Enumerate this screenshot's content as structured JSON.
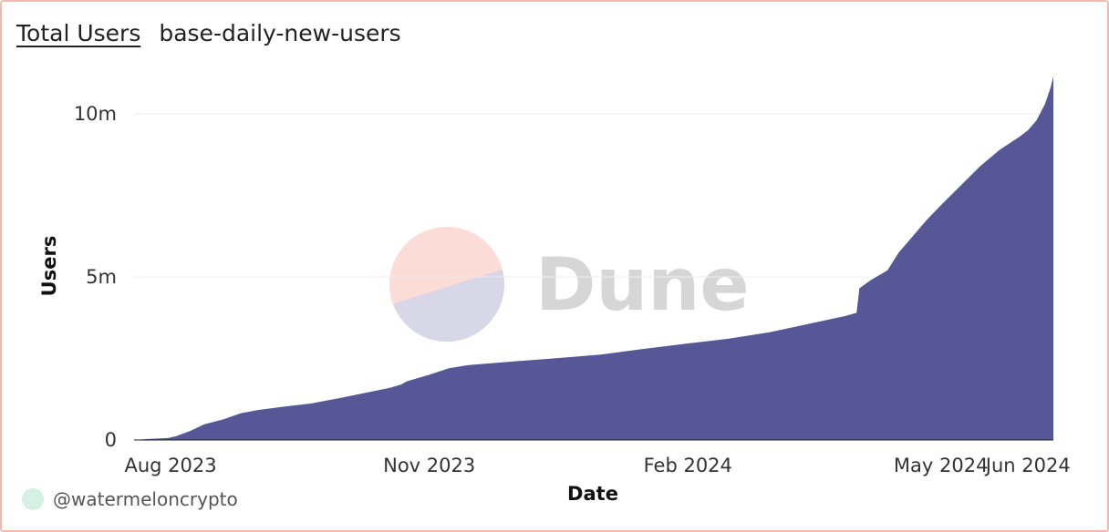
{
  "header": {
    "title": "Total Users",
    "subtitle": "base-daily-new-users"
  },
  "footer": {
    "author": "@watermeloncrypto"
  },
  "watermark": {
    "text": "Dune",
    "colors": {
      "top": "#fbdcd6",
      "bottom": "#d8d7e8"
    }
  },
  "colors": {
    "area": "#575798",
    "grid": "#eeeeee",
    "border": "#f4b7ab"
  },
  "chart_data": {
    "type": "area",
    "title": "Total Users",
    "xlabel": "Date",
    "ylabel": "Users",
    "ylim": [
      0,
      11200000
    ],
    "xlim": [
      "2023-07-19",
      "2024-06-10"
    ],
    "grid": true,
    "legend": "none",
    "x_ticks": [
      {
        "date": "2023-08-01",
        "label": "Aug 2023"
      },
      {
        "date": "2023-11-01",
        "label": "Nov 2023"
      },
      {
        "date": "2024-02-01",
        "label": "Feb 2024"
      },
      {
        "date": "2024-05-01",
        "label": "May 2024"
      },
      {
        "date": "2024-06-01",
        "label": "Jun 2024"
      }
    ],
    "y_ticks": [
      {
        "value": 0,
        "label": "0"
      },
      {
        "value": 5000000,
        "label": "5m"
      },
      {
        "value": 10000000,
        "label": "10m"
      }
    ],
    "series": [
      {
        "points": [
          [
            "2023-07-19",
            0
          ],
          [
            "2023-07-24",
            30000
          ],
          [
            "2023-07-31",
            60000
          ],
          [
            "2023-08-03",
            120000
          ],
          [
            "2023-08-08",
            280000
          ],
          [
            "2023-08-13",
            480000
          ],
          [
            "2023-08-20",
            640000
          ],
          [
            "2023-08-26",
            820000
          ],
          [
            "2023-09-01",
            920000
          ],
          [
            "2023-09-10",
            1020000
          ],
          [
            "2023-09-20",
            1120000
          ],
          [
            "2023-10-01",
            1300000
          ],
          [
            "2023-10-10",
            1460000
          ],
          [
            "2023-10-18",
            1600000
          ],
          [
            "2023-10-22",
            1700000
          ],
          [
            "2023-10-24",
            1800000
          ],
          [
            "2023-11-01",
            2000000
          ],
          [
            "2023-11-08",
            2200000
          ],
          [
            "2023-11-15",
            2300000
          ],
          [
            "2023-12-01",
            2410000
          ],
          [
            "2023-12-15",
            2500000
          ],
          [
            "2024-01-01",
            2620000
          ],
          [
            "2024-01-15",
            2780000
          ],
          [
            "2024-02-01",
            2960000
          ],
          [
            "2024-02-15",
            3100000
          ],
          [
            "2024-03-01",
            3300000
          ],
          [
            "2024-03-15",
            3560000
          ],
          [
            "2024-03-28",
            3800000
          ],
          [
            "2024-04-01",
            3900000
          ],
          [
            "2024-04-02",
            4650000
          ],
          [
            "2024-04-06",
            4900000
          ],
          [
            "2024-04-12",
            5200000
          ],
          [
            "2024-04-16",
            5750000
          ],
          [
            "2024-04-21",
            6250000
          ],
          [
            "2024-04-26",
            6750000
          ],
          [
            "2024-05-01",
            7200000
          ],
          [
            "2024-05-08",
            7800000
          ],
          [
            "2024-05-15",
            8400000
          ],
          [
            "2024-05-22",
            8900000
          ],
          [
            "2024-05-29",
            9300000
          ],
          [
            "2024-06-01",
            9500000
          ],
          [
            "2024-06-04",
            9800000
          ],
          [
            "2024-06-07",
            10300000
          ],
          [
            "2024-06-09",
            10800000
          ],
          [
            "2024-06-10",
            11150000
          ]
        ]
      }
    ]
  }
}
